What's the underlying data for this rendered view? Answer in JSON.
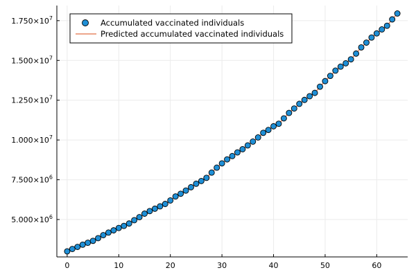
{
  "chart_data": {
    "type": "scatter",
    "title": "",
    "xlabel": "",
    "ylabel": "",
    "xlim": [
      -2,
      66
    ],
    "ylim": [
      2650000,
      18450000
    ],
    "x_ticks": [
      0,
      10,
      20,
      30,
      40,
      50,
      60
    ],
    "y_ticks": [
      5000000,
      7500000,
      10000000,
      12500000,
      15000000,
      17500000
    ],
    "y_tick_labels": [
      {
        "mantissa": "5.000",
        "base": "×10",
        "exp": "6"
      },
      {
        "mantissa": "7.500",
        "base": "×10",
        "exp": "6"
      },
      {
        "mantissa": "1.000",
        "base": "×10",
        "exp": "7"
      },
      {
        "mantissa": "1.250",
        "base": "×10",
        "exp": "7"
      },
      {
        "mantissa": "1.500",
        "base": "×10",
        "exp": "7"
      },
      {
        "mantissa": "1.750",
        "base": "×10",
        "exp": "7"
      }
    ],
    "grid": true,
    "legend_position": "top-left",
    "series": [
      {
        "name": "Accumulated vaccinated individuals",
        "kind": "scatter",
        "color": "#1f8fd6",
        "stroke": "#000000",
        "x": [
          0,
          1,
          2,
          3,
          4,
          5,
          6,
          7,
          8,
          9,
          10,
          11,
          12,
          13,
          14,
          15,
          16,
          17,
          18,
          19,
          20,
          21,
          22,
          23,
          24,
          25,
          26,
          27,
          28,
          29,
          30,
          31,
          32,
          33,
          34,
          35,
          36,
          37,
          38,
          39,
          40,
          41,
          42,
          43,
          44,
          45,
          46,
          47,
          48,
          49,
          50,
          51,
          52,
          53,
          54,
          55,
          56,
          57,
          58,
          59,
          60,
          61,
          62,
          63,
          64
        ],
        "values": [
          3000000,
          3150000,
          3280000,
          3420000,
          3540000,
          3660000,
          3830000,
          4020000,
          4180000,
          4320000,
          4470000,
          4600000,
          4750000,
          4960000,
          5150000,
          5370000,
          5530000,
          5680000,
          5830000,
          5980000,
          6200000,
          6450000,
          6620000,
          6820000,
          7030000,
          7250000,
          7420000,
          7620000,
          7950000,
          8260000,
          8530000,
          8780000,
          8990000,
          9220000,
          9420000,
          9660000,
          9900000,
          10160000,
          10450000,
          10630000,
          10860000,
          11020000,
          11360000,
          11700000,
          11980000,
          12270000,
          12520000,
          12750000,
          12960000,
          13350000,
          13700000,
          14030000,
          14360000,
          14610000,
          14820000,
          15070000,
          15430000,
          15820000,
          16120000,
          16440000,
          16700000,
          16950000,
          17180000,
          17580000,
          17950000
        ]
      },
      {
        "name": "Predicted accumulated vaccinated individuals",
        "kind": "line",
        "color": "#e26f46",
        "x": [
          0,
          1,
          2,
          3,
          4,
          5,
          6,
          7,
          8,
          9,
          10,
          11,
          12,
          13,
          14,
          15,
          16,
          17,
          18,
          19,
          20,
          21,
          22,
          23,
          24,
          25,
          26,
          27,
          28,
          29,
          30,
          31,
          32,
          33,
          34,
          35,
          36,
          37,
          38,
          39,
          40,
          41,
          42,
          43,
          44,
          45,
          46,
          47,
          48,
          49,
          50,
          51,
          52,
          53,
          54,
          55,
          56,
          57,
          58,
          59,
          60,
          61,
          62,
          63,
          64
        ],
        "values": [
          3000000,
          3150000,
          3280000,
          3420000,
          3540000,
          3660000,
          3830000,
          4020000,
          4180000,
          4320000,
          4470000,
          4600000,
          4750000,
          4960000,
          5150000,
          5370000,
          5530000,
          5680000,
          5830000,
          5980000,
          6200000,
          6450000,
          6620000,
          6820000,
          7030000,
          7250000,
          7420000,
          7620000,
          7950000,
          8260000,
          8530000,
          8780000,
          8990000,
          9220000,
          9420000,
          9660000,
          9900000,
          10160000,
          10450000,
          10630000,
          10860000,
          11020000,
          11360000,
          11700000,
          11980000,
          12270000,
          12520000,
          12750000,
          12960000,
          13350000,
          13700000,
          14030000,
          14360000,
          14610000,
          14820000,
          15070000,
          15430000,
          15820000,
          16120000,
          16440000,
          16700000,
          16950000,
          17180000,
          17580000,
          17950000
        ]
      }
    ]
  }
}
